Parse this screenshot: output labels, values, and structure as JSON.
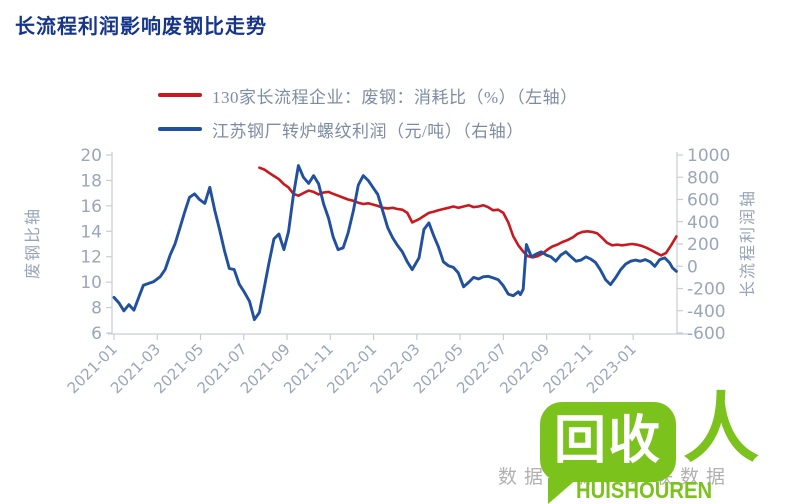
{
  "title": "长流程利润影响废钢比走势",
  "legend": [
    {
      "label": "130家长流程企业：废钢：消耗比（%）（左轴）",
      "color": "#c8191f"
    },
    {
      "label": "江苏钢厂转炉螺纹利润（元/吨）（右轴）",
      "color": "#20509e"
    }
  ],
  "source_note": "数据来源：钢联数据",
  "watermark": {
    "bubble_text": "回收",
    "person_char": "人",
    "caption": "HUISHOUREN",
    "green": "#7cc21d"
  },
  "chart_data": {
    "type": "line",
    "title": "长流程利润影响废钢比走势",
    "grid": false,
    "legend_position": "top-left",
    "left_axis": {
      "title": "废钢比轴",
      "min": 6,
      "max": 20,
      "ticks": [
        20,
        18,
        16,
        14,
        12,
        10,
        8,
        6
      ]
    },
    "right_axis": {
      "title": "长流程利润轴",
      "min": -600,
      "max": 1000,
      "ticks": [
        1000,
        800,
        600,
        400,
        200,
        0,
        -200,
        -400,
        -600
      ]
    },
    "x_axis": {
      "tick_labels": [
        "2021-01",
        "2021-03",
        "2021-05",
        "2021-07",
        "2021-09",
        "2021-11",
        "2022-01",
        "2022-03",
        "2022-05",
        "2022-07",
        "2022-09",
        "2022-11",
        "2023-01"
      ],
      "start": "2021-01-01",
      "end": "2023-03-01"
    },
    "series": [
      {
        "name": "130家长流程企业：废钢：消耗比（%）",
        "axis": "left",
        "color": "#c8191f",
        "width": 2.6,
        "points": [
          [
            "2021-07-23",
            19.0
          ],
          [
            "2021-07-30",
            18.85
          ],
          [
            "2021-08-06",
            18.6
          ],
          [
            "2021-08-13",
            18.35
          ],
          [
            "2021-08-20",
            18.1
          ],
          [
            "2021-08-27",
            17.7
          ],
          [
            "2021-09-03",
            17.45
          ],
          [
            "2021-09-10",
            16.95
          ],
          [
            "2021-09-17",
            16.8
          ],
          [
            "2021-09-24",
            17.0
          ],
          [
            "2021-10-01",
            17.2
          ],
          [
            "2021-10-08",
            17.1
          ],
          [
            "2021-10-15",
            16.9
          ],
          [
            "2021-10-22",
            17.05
          ],
          [
            "2021-10-29",
            17.1
          ],
          [
            "2021-11-05",
            16.95
          ],
          [
            "2021-11-12",
            16.8
          ],
          [
            "2021-11-19",
            16.65
          ],
          [
            "2021-11-26",
            16.5
          ],
          [
            "2021-12-03",
            16.4
          ],
          [
            "2021-12-10",
            16.25
          ],
          [
            "2021-12-17",
            16.15
          ],
          [
            "2021-12-24",
            16.2
          ],
          [
            "2021-12-31",
            16.1
          ],
          [
            "2022-01-07",
            16.0
          ],
          [
            "2022-01-14",
            15.85
          ],
          [
            "2022-01-21",
            15.8
          ],
          [
            "2022-01-28",
            15.85
          ],
          [
            "2022-02-04",
            15.75
          ],
          [
            "2022-02-11",
            15.7
          ],
          [
            "2022-02-18",
            15.45
          ],
          [
            "2022-02-25",
            14.7
          ],
          [
            "2022-03-04",
            14.95
          ],
          [
            "2022-03-11",
            15.2
          ],
          [
            "2022-03-18",
            15.45
          ],
          [
            "2022-03-25",
            15.55
          ],
          [
            "2022-04-01",
            15.65
          ],
          [
            "2022-04-08",
            15.75
          ],
          [
            "2022-04-15",
            15.85
          ],
          [
            "2022-04-22",
            15.95
          ],
          [
            "2022-04-29",
            15.85
          ],
          [
            "2022-05-06",
            15.95
          ],
          [
            "2022-05-13",
            16.05
          ],
          [
            "2022-05-20",
            15.9
          ],
          [
            "2022-05-27",
            15.95
          ],
          [
            "2022-06-03",
            16.05
          ],
          [
            "2022-06-10",
            15.9
          ],
          [
            "2022-06-17",
            15.65
          ],
          [
            "2022-06-24",
            15.7
          ],
          [
            "2022-07-01",
            15.45
          ],
          [
            "2022-07-08",
            14.7
          ],
          [
            "2022-07-15",
            13.6
          ],
          [
            "2022-07-22",
            12.9
          ],
          [
            "2022-07-29",
            12.4
          ],
          [
            "2022-08-05",
            12.05
          ],
          [
            "2022-08-12",
            11.95
          ],
          [
            "2022-08-19",
            12.05
          ],
          [
            "2022-08-26",
            12.25
          ],
          [
            "2022-09-02",
            12.55
          ],
          [
            "2022-09-09",
            12.8
          ],
          [
            "2022-09-16",
            12.95
          ],
          [
            "2022-09-23",
            13.15
          ],
          [
            "2022-09-30",
            13.3
          ],
          [
            "2022-10-07",
            13.5
          ],
          [
            "2022-10-14",
            13.8
          ],
          [
            "2022-10-21",
            13.95
          ],
          [
            "2022-10-28",
            14.0
          ],
          [
            "2022-11-04",
            13.95
          ],
          [
            "2022-11-11",
            13.85
          ],
          [
            "2022-11-18",
            13.5
          ],
          [
            "2022-11-25",
            13.1
          ],
          [
            "2022-12-02",
            12.9
          ],
          [
            "2022-12-09",
            12.95
          ],
          [
            "2022-12-16",
            12.9
          ],
          [
            "2022-12-23",
            12.95
          ],
          [
            "2022-12-30",
            13.0
          ],
          [
            "2023-01-06",
            12.95
          ],
          [
            "2023-01-13",
            12.85
          ],
          [
            "2023-01-20",
            12.7
          ],
          [
            "2023-01-27",
            12.5
          ],
          [
            "2023-02-03",
            12.3
          ],
          [
            "2023-02-10",
            12.1
          ],
          [
            "2023-02-17",
            12.3
          ],
          [
            "2023-02-24",
            12.9
          ],
          [
            "2023-03-01",
            13.6
          ]
        ]
      },
      {
        "name": "江苏钢厂转炉螺纹利润（元/吨）",
        "axis": "right",
        "color": "#20509e",
        "width": 2.9,
        "points": [
          [
            "2021-01-01",
            -280
          ],
          [
            "2021-01-08",
            -330
          ],
          [
            "2021-01-15",
            -400
          ],
          [
            "2021-01-22",
            -345
          ],
          [
            "2021-01-29",
            -395
          ],
          [
            "2021-02-05",
            -285
          ],
          [
            "2021-02-12",
            -170
          ],
          [
            "2021-02-19",
            -155
          ],
          [
            "2021-02-26",
            -140
          ],
          [
            "2021-03-05",
            -95
          ],
          [
            "2021-03-12",
            -30
          ],
          [
            "2021-03-19",
            100
          ],
          [
            "2021-03-26",
            200
          ],
          [
            "2021-04-02",
            335
          ],
          [
            "2021-04-09",
            485
          ],
          [
            "2021-04-16",
            620
          ],
          [
            "2021-04-23",
            650
          ],
          [
            "2021-04-30",
            600
          ],
          [
            "2021-05-07",
            565
          ],
          [
            "2021-05-14",
            710
          ],
          [
            "2021-05-21",
            505
          ],
          [
            "2021-05-28",
            325
          ],
          [
            "2021-06-04",
            145
          ],
          [
            "2021-06-11",
            -20
          ],
          [
            "2021-06-18",
            -30
          ],
          [
            "2021-06-25",
            -160
          ],
          [
            "2021-07-02",
            -235
          ],
          [
            "2021-07-09",
            -315
          ],
          [
            "2021-07-16",
            -480
          ],
          [
            "2021-07-23",
            -415
          ],
          [
            "2021-07-30",
            -185
          ],
          [
            "2021-08-06",
            30
          ],
          [
            "2021-08-13",
            245
          ],
          [
            "2021-08-20",
            290
          ],
          [
            "2021-08-27",
            150
          ],
          [
            "2021-09-03",
            310
          ],
          [
            "2021-09-10",
            640
          ],
          [
            "2021-09-17",
            905
          ],
          [
            "2021-09-24",
            800
          ],
          [
            "2021-10-01",
            745
          ],
          [
            "2021-10-08",
            815
          ],
          [
            "2021-10-15",
            740
          ],
          [
            "2021-10-22",
            560
          ],
          [
            "2021-10-29",
            430
          ],
          [
            "2021-11-05",
            265
          ],
          [
            "2021-11-12",
            150
          ],
          [
            "2021-11-19",
            165
          ],
          [
            "2021-11-26",
            300
          ],
          [
            "2021-12-03",
            500
          ],
          [
            "2021-12-10",
            730
          ],
          [
            "2021-12-17",
            815
          ],
          [
            "2021-12-24",
            770
          ],
          [
            "2021-12-31",
            705
          ],
          [
            "2022-01-07",
            645
          ],
          [
            "2022-01-14",
            495
          ],
          [
            "2022-01-21",
            345
          ],
          [
            "2022-01-28",
            255
          ],
          [
            "2022-02-04",
            190
          ],
          [
            "2022-02-11",
            130
          ],
          [
            "2022-02-18",
            40
          ],
          [
            "2022-02-25",
            -30
          ],
          [
            "2022-03-04",
            75
          ],
          [
            "2022-03-11",
            330
          ],
          [
            "2022-03-18",
            390
          ],
          [
            "2022-03-25",
            270
          ],
          [
            "2022-04-01",
            175
          ],
          [
            "2022-04-08",
            40
          ],
          [
            "2022-04-15",
            5
          ],
          [
            "2022-04-22",
            -10
          ],
          [
            "2022-04-29",
            -60
          ],
          [
            "2022-05-06",
            -185
          ],
          [
            "2022-05-13",
            -145
          ],
          [
            "2022-05-20",
            -100
          ],
          [
            "2022-05-27",
            -115
          ],
          [
            "2022-06-03",
            -95
          ],
          [
            "2022-06-10",
            -90
          ],
          [
            "2022-06-17",
            -105
          ],
          [
            "2022-06-24",
            -120
          ],
          [
            "2022-07-01",
            -175
          ],
          [
            "2022-07-08",
            -250
          ],
          [
            "2022-07-15",
            -265
          ],
          [
            "2022-07-22",
            -230
          ],
          [
            "2022-07-25",
            -255
          ],
          [
            "2022-07-29",
            -205
          ],
          [
            "2022-08-03",
            195
          ],
          [
            "2022-08-10",
            85
          ],
          [
            "2022-08-17",
            110
          ],
          [
            "2022-08-24",
            130
          ],
          [
            "2022-08-31",
            100
          ],
          [
            "2022-09-07",
            85
          ],
          [
            "2022-09-14",
            45
          ],
          [
            "2022-09-21",
            100
          ],
          [
            "2022-09-28",
            130
          ],
          [
            "2022-10-05",
            85
          ],
          [
            "2022-10-12",
            45
          ],
          [
            "2022-10-19",
            55
          ],
          [
            "2022-10-26",
            85
          ],
          [
            "2022-11-02",
            65
          ],
          [
            "2022-11-09",
            35
          ],
          [
            "2022-11-16",
            -35
          ],
          [
            "2022-11-23",
            -120
          ],
          [
            "2022-11-30",
            -165
          ],
          [
            "2022-12-07",
            -100
          ],
          [
            "2022-12-14",
            -30
          ],
          [
            "2022-12-21",
            20
          ],
          [
            "2022-12-28",
            45
          ],
          [
            "2023-01-04",
            55
          ],
          [
            "2023-01-11",
            45
          ],
          [
            "2023-01-18",
            60
          ],
          [
            "2023-01-25",
            40
          ],
          [
            "2023-02-01",
            0
          ],
          [
            "2023-02-08",
            60
          ],
          [
            "2023-02-15",
            75
          ],
          [
            "2023-02-22",
            30
          ],
          [
            "2023-02-26",
            -15
          ],
          [
            "2023-03-01",
            -45
          ]
        ]
      }
    ]
  }
}
